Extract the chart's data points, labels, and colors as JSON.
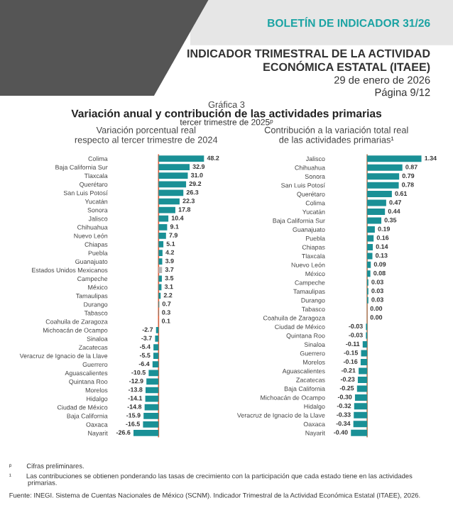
{
  "chart_data": [
    {
      "type": "bar",
      "orientation": "horizontal",
      "title": "Variación porcentual real\nrespecto al tercer trimestre de 2024",
      "categories": [
        "Colima",
        "Baja California Sur",
        "Tlaxcala",
        "Querétaro",
        "San Luis Potosí",
        "Yucatán",
        "Sonora",
        "Jalisco",
        "Chihuahua",
        "Nuevo León",
        "Chiapas",
        "Puebla",
        "Guanajuato",
        "Estados Unidos Mexicanos",
        "Campeche",
        "México",
        "Tamaulipas",
        "Durango",
        "Tabasco",
        "Coahuila de Zaragoza",
        "Michoacán de Ocampo",
        "Sinaloa",
        "Zacatecas",
        "Veracruz de Ignacio de la Llave",
        "Guerrero",
        "Aguascalientes",
        "Quintana Roo",
        "Morelos",
        "Hidalgo",
        "Ciudad de México",
        "Baja California",
        "Oaxaca",
        "Nayarit"
      ],
      "values": [
        48.2,
        32.9,
        31.0,
        29.2,
        26.3,
        22.3,
        17.8,
        10.4,
        9.1,
        7.9,
        5.1,
        4.2,
        3.9,
        3.7,
        3.5,
        3.1,
        2.2,
        0.7,
        0.3,
        0.1,
        -2.7,
        -3.7,
        -5.4,
        -5.5,
        -6.4,
        -10.5,
        -12.9,
        -13.8,
        -14.1,
        -14.8,
        -15.9,
        -16.5,
        -26.6
      ],
      "colors": [
        "#1a9096",
        "#1a9096",
        "#1a9096",
        "#1a9096",
        "#1a9096",
        "#1a9096",
        "#1a9096",
        "#1a9096",
        "#1a9096",
        "#1a9096",
        "#1a9096",
        "#1a9096",
        "#1a9096",
        "#b5b5b5",
        "#1a9096",
        "#1a9096",
        "#1a9096",
        "#1a9096",
        "#1a9096",
        "#1a9096",
        "#1a9096",
        "#1a9096",
        "#1a9096",
        "#1a9096",
        "#1a9096",
        "#1a9096",
        "#1a9096",
        "#1a9096",
        "#1a9096",
        "#1a9096",
        "#1a9096",
        "#1a9096",
        "#1a9096"
      ],
      "value_labels": [
        "48.2",
        "32.9",
        "31.0",
        "29.2",
        "26.3",
        "22.3",
        "17.8",
        "10.4",
        "9.1",
        "7.9",
        "5.1",
        "4.2",
        "3.9",
        "3.7",
        "3.5",
        "3.1",
        "2.2",
        "0.7",
        "0.3",
        "0.1",
        "-2.7",
        "-3.7",
        "-5.4",
        "-5.5",
        "-6.4",
        "-10.5",
        "-12.9",
        "-13.8",
        "-14.1",
        "-14.8",
        "-15.9",
        "-16.5",
        "-26.6"
      ],
      "tick_labels": "y",
      "grid": false,
      "legend": false,
      "ref_lines": [
        {
          "axis": "x",
          "value": 0,
          "color": "#e0603a"
        }
      ],
      "annotations": [
        "BOLETÍN DE INDICADOR 31/26",
        "INDICADOR TRIMESTRAL DE LA ACTIVIDAD\nECONÓMICA ESTATAL (ITAEE)",
        "29 de enero de 2026",
        "Página 9/12",
        "Gráfica 3",
        "Variación anual y contribución de las actividades primarias",
        "tercer trimestre de 2025ᵖ",
        "ᵖ        Cifras preliminares.",
        "¹        Las contribuciones se obtienen ponderando las tasas de crecimiento con la participación que cada estado tiene en las actividades\n          primarias.",
        "Fuente: INEGI. Sistema de Cuentas Nacionales de México (SCNM). Indicador Trimestral de la Actividad Económica Estatal (ITAEE), 2026."
      ]
    },
    {
      "type": "bar",
      "orientation": "horizontal",
      "title": "Contribución a la variación total real\nde las actividades primarias¹",
      "categories": [
        "Jalisco",
        "Chihuahua",
        "Sonora",
        "San Luis Potosí",
        "Querétaro",
        "Colima",
        "Yucatán",
        "Baja California Sur",
        "Guanajuato",
        "Puebla",
        "Chiapas",
        "Tlaxcala",
        "Nuevo León",
        "México",
        "Campeche",
        "Tamaulipas",
        "Durango",
        "Tabasco",
        "Coahuila de Zaragoza",
        "Ciudad de México",
        "Quintana Roo",
        "Sinaloa",
        "Guerrero",
        "Morelos",
        "Aguascalientes",
        "Zacatecas",
        "Baja California",
        "Michoacán de Ocampo",
        "Hidalgo",
        "Veracruz de Ignacio de la Llave",
        "Oaxaca",
        "Nayarit"
      ],
      "values": [
        1.34,
        0.87,
        0.79,
        0.78,
        0.61,
        0.47,
        0.44,
        0.35,
        0.19,
        0.16,
        0.14,
        0.13,
        0.09,
        0.08,
        0.03,
        0.03,
        0.03,
        0.0,
        0.0,
        -0.03,
        -0.03,
        -0.11,
        -0.15,
        -0.16,
        -0.21,
        -0.23,
        -0.25,
        -0.3,
        -0.32,
        -0.33,
        -0.34,
        -0.4
      ],
      "color": "#1a9096",
      "value_labels": [
        "1.34",
        "0.87",
        "0.79",
        "0.78",
        "0.61",
        "0.47",
        "0.44",
        "0.35",
        "0.19",
        "0.16",
        "0.14",
        "0.13",
        "0.09",
        "0.08",
        "0.03",
        "0.03",
        "0.03",
        "0.00",
        "0.00",
        "-0.03",
        "-0.03",
        "-0.11",
        "-0.15",
        "-0.16",
        "-0.21",
        "-0.23",
        "-0.25",
        "-0.30",
        "-0.32",
        "-0.33",
        "-0.34",
        "-0.40"
      ],
      "tick_labels": "y",
      "grid": false,
      "legend": false,
      "ref_lines": [
        {
          "axis": "x",
          "value": 0,
          "color": "#b08060"
        }
      ]
    }
  ]
}
